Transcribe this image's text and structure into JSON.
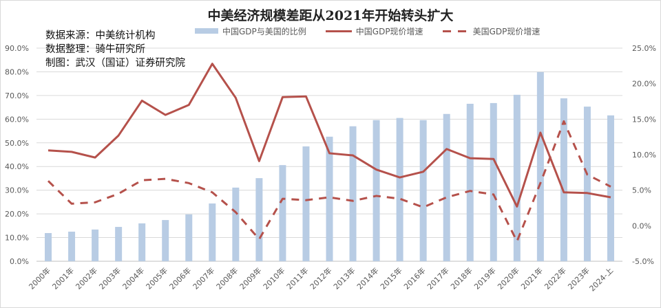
{
  "chart_data": {
    "type": "bar+line",
    "title": "中美经济规模差距从2021年开始转头扩大",
    "annotations": [
      "数据来源：中美统计机构",
      "数据整理：骑牛研究所",
      "制图：武汉（国证）证券研究院"
    ],
    "legend": [
      {
        "name": "中国GDP与美国的比例",
        "style": "bar",
        "color": "#b8cce4"
      },
      {
        "name": "中国GDP现价增速",
        "style": "solid-line",
        "color": "#b5514b"
      },
      {
        "name": "美国GDP现价增速",
        "style": "dashed-line",
        "color": "#b5514b"
      }
    ],
    "legend_position": "top",
    "grid": true,
    "categories": [
      "2000年",
      "2001年",
      "2002年",
      "2003年",
      "2004年",
      "2005年",
      "2006年",
      "2007年",
      "2008年",
      "2009年",
      "2010年",
      "2011年",
      "2012年",
      "2013年",
      "2014年",
      "2015年",
      "2016年",
      "2017年",
      "2018年",
      "2019年",
      "2020年",
      "2021年",
      "2022年",
      "2023年",
      "2024-上"
    ],
    "left_axis": {
      "ylim": [
        0,
        90
      ],
      "ticks": [
        "0.0%",
        "10.0%",
        "20.0%",
        "30.0%",
        "40.0%",
        "50.0%",
        "60.0%",
        "70.0%",
        "80.0%",
        "90.0%"
      ]
    },
    "right_axis": {
      "ylim": [
        -5,
        25
      ],
      "ticks": [
        "-5.0%",
        "0.0%",
        "5.0%",
        "10.0%",
        "15.0%",
        "20.0%",
        "25.0%"
      ]
    },
    "series": [
      {
        "name": "中国GDP与美国的比例",
        "axis": "left",
        "type": "bar",
        "unit": "%",
        "values": [
          11.9,
          12.5,
          13.4,
          14.5,
          16.0,
          17.4,
          19.8,
          24.4,
          31.1,
          35.1,
          40.6,
          48.5,
          52.6,
          57.0,
          59.6,
          60.5,
          59.6,
          62.2,
          66.5,
          66.8,
          70.3,
          79.9,
          68.8,
          65.3,
          61.6
        ]
      },
      {
        "name": "中国GDP现价增速",
        "axis": "right",
        "type": "line",
        "unit": "%",
        "values": [
          10.6,
          10.4,
          9.6,
          12.7,
          17.6,
          15.6,
          17.0,
          22.8,
          18.0,
          9.1,
          18.1,
          18.2,
          10.2,
          9.9,
          7.9,
          6.8,
          7.6,
          10.8,
          9.5,
          9.4,
          2.7,
          13.1,
          4.7,
          4.6,
          4.0
        ]
      },
      {
        "name": "美国GDP现价增速",
        "axis": "right",
        "type": "line",
        "dashed": true,
        "unit": "%",
        "values": [
          6.3,
          3.1,
          3.3,
          4.5,
          6.4,
          6.6,
          6.0,
          4.7,
          1.9,
          -1.9,
          3.8,
          3.6,
          4.0,
          3.5,
          4.2,
          3.8,
          2.6,
          4.0,
          4.9,
          4.4,
          -2.2,
          6.0,
          14.7,
          7.2,
          5.5
        ]
      }
    ]
  }
}
